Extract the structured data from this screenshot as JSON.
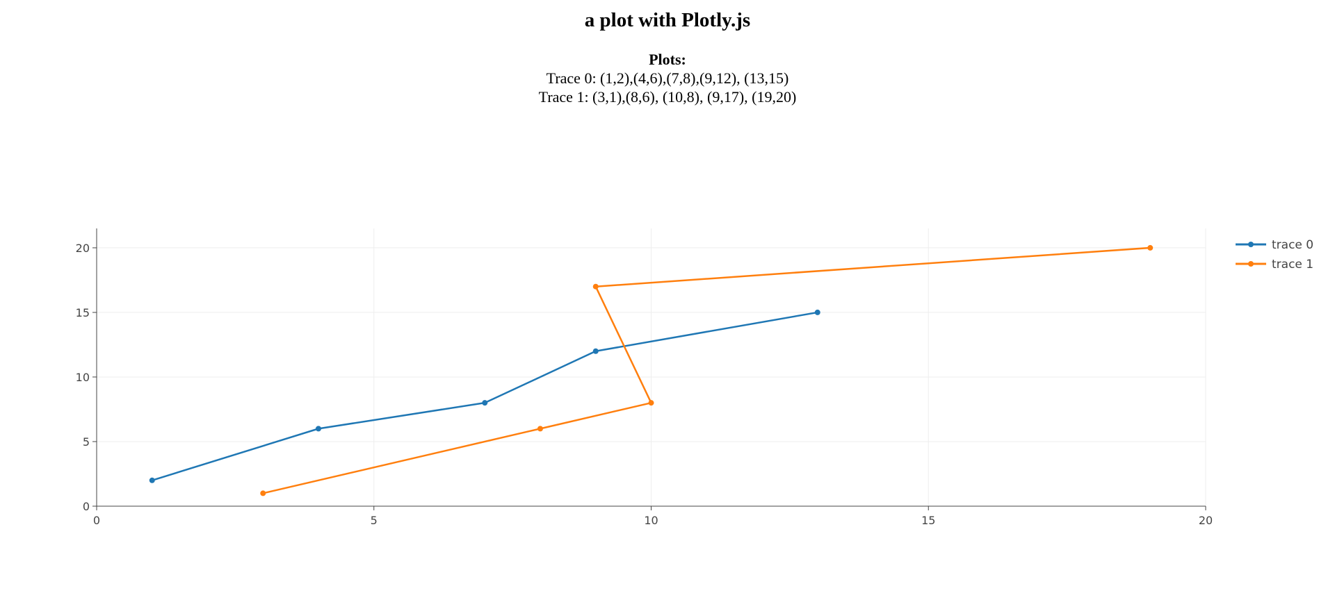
{
  "page": {
    "title": "a plot with Plotly.js",
    "description_heading": "Plots:",
    "description_lines": [
      "Trace 0: (1,2),(4,6),(7,8),(9,12), (13,15)",
      "Trace 1: (3,1),(8,6), (10,8), (9,17), (19,20)"
    ]
  },
  "chart_data": {
    "type": "line",
    "title": "",
    "xlabel": "",
    "ylabel": "",
    "xlim": [
      0,
      20
    ],
    "ylim": [
      0,
      21.5
    ],
    "xticks": [
      0,
      5,
      10,
      15,
      20
    ],
    "yticks": [
      0,
      5,
      10,
      15,
      20
    ],
    "grid": true,
    "legend_placement": "top-right",
    "mode": "lines+markers",
    "series": [
      {
        "name": "trace 0",
        "color": "#1f77b4",
        "x": [
          1,
          4,
          7,
          9,
          13
        ],
        "y": [
          2,
          6,
          8,
          12,
          15
        ]
      },
      {
        "name": "trace 1",
        "color": "#ff7f0e",
        "x": [
          3,
          8,
          10,
          9,
          19
        ],
        "y": [
          1,
          6,
          8,
          17,
          20
        ]
      }
    ]
  }
}
